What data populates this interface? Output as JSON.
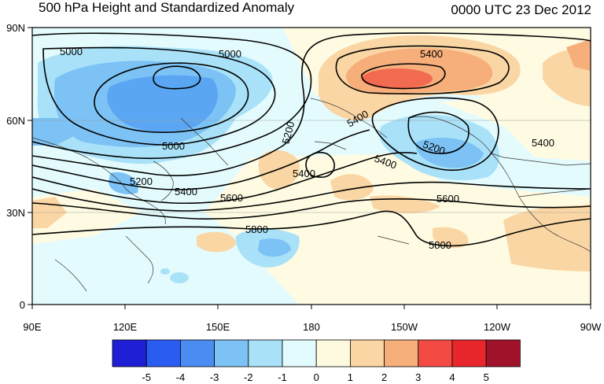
{
  "title_left": "500 hPa Height and Standardized Anomaly",
  "title_right": "0000 UTC 23 Dec 2012",
  "lat_labels": [
    "90N",
    "60N",
    "30N",
    "0"
  ],
  "lon_labels": [
    "90E",
    "120E",
    "150E",
    "180",
    "150W",
    "120W",
    "90W"
  ],
  "contour_labels": [
    {
      "text": "5000"
    },
    {
      "text": "5000"
    },
    {
      "text": "5000"
    },
    {
      "text": "5200"
    },
    {
      "text": "5400"
    },
    {
      "text": "5600"
    },
    {
      "text": "5800"
    },
    {
      "text": "5200"
    },
    {
      "text": "5400"
    },
    {
      "text": "5400"
    },
    {
      "text": "5400"
    },
    {
      "text": "5400"
    },
    {
      "text": "5200"
    },
    {
      "text": "5400"
    },
    {
      "text": "5600"
    },
    {
      "text": "5800"
    }
  ],
  "colorbar": {
    "labels": [
      "-5",
      "-4",
      "-3",
      "-2",
      "-1",
      "0",
      "1",
      "2",
      "3",
      "4",
      "5"
    ],
    "colors": [
      "#1f1fd6",
      "#2b5cf2",
      "#4b8cf2",
      "#7cc2f5",
      "#a9e2f8",
      "#e2fbfd",
      "#fefae0",
      "#fad6a4",
      "#f6ae7a",
      "#f34b44",
      "#e8262c",
      "#a1132a"
    ]
  }
}
